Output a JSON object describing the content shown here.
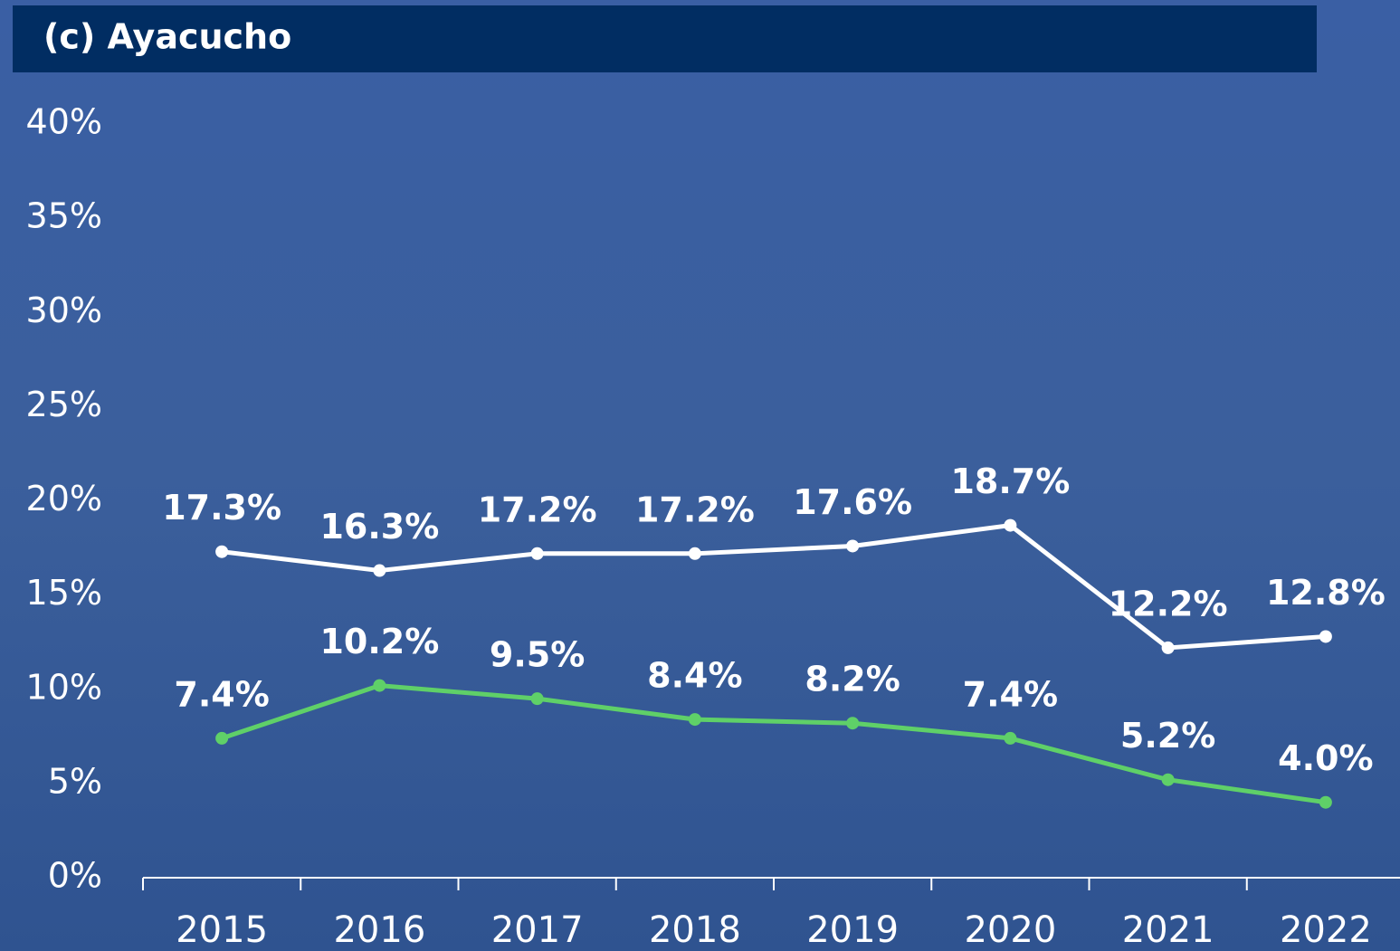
{
  "chart_data": {
    "type": "line",
    "title": "(c) Ayacucho",
    "categories": [
      "2015",
      "2016",
      "2017",
      "2018",
      "2019",
      "2020",
      "2021",
      "2022"
    ],
    "series": [
      {
        "color": "#ffffff",
        "values": [
          17.3,
          16.3,
          17.2,
          17.2,
          17.6,
          18.7,
          12.2,
          12.8
        ],
        "value_labels": [
          "17.3%",
          "16.3%",
          "17.2%",
          "17.2%",
          "17.6%",
          "18.7%",
          "12.2%",
          "12.8%"
        ]
      },
      {
        "color": "#5fd068",
        "values": [
          7.4,
          10.2,
          9.5,
          8.4,
          8.2,
          7.4,
          5.2,
          4.0
        ],
        "value_labels": [
          "7.4%",
          "10.2%",
          "9.5%",
          "8.4%",
          "8.2%",
          "7.4%",
          "5.2%",
          "4.0%"
        ]
      }
    ],
    "ylim": [
      0,
      40
    ],
    "yticks": [
      {
        "value": 0,
        "label": "0%"
      },
      {
        "value": 5,
        "label": "5%"
      },
      {
        "value": 10,
        "label": "10%"
      },
      {
        "value": 15,
        "label": "15%"
      },
      {
        "value": 20,
        "label": "20%"
      },
      {
        "value": 25,
        "label": "25%"
      },
      {
        "value": 30,
        "label": "30%"
      },
      {
        "value": 35,
        "label": "35%"
      },
      {
        "value": 40,
        "label": "40%"
      }
    ],
    "grid": false
  }
}
